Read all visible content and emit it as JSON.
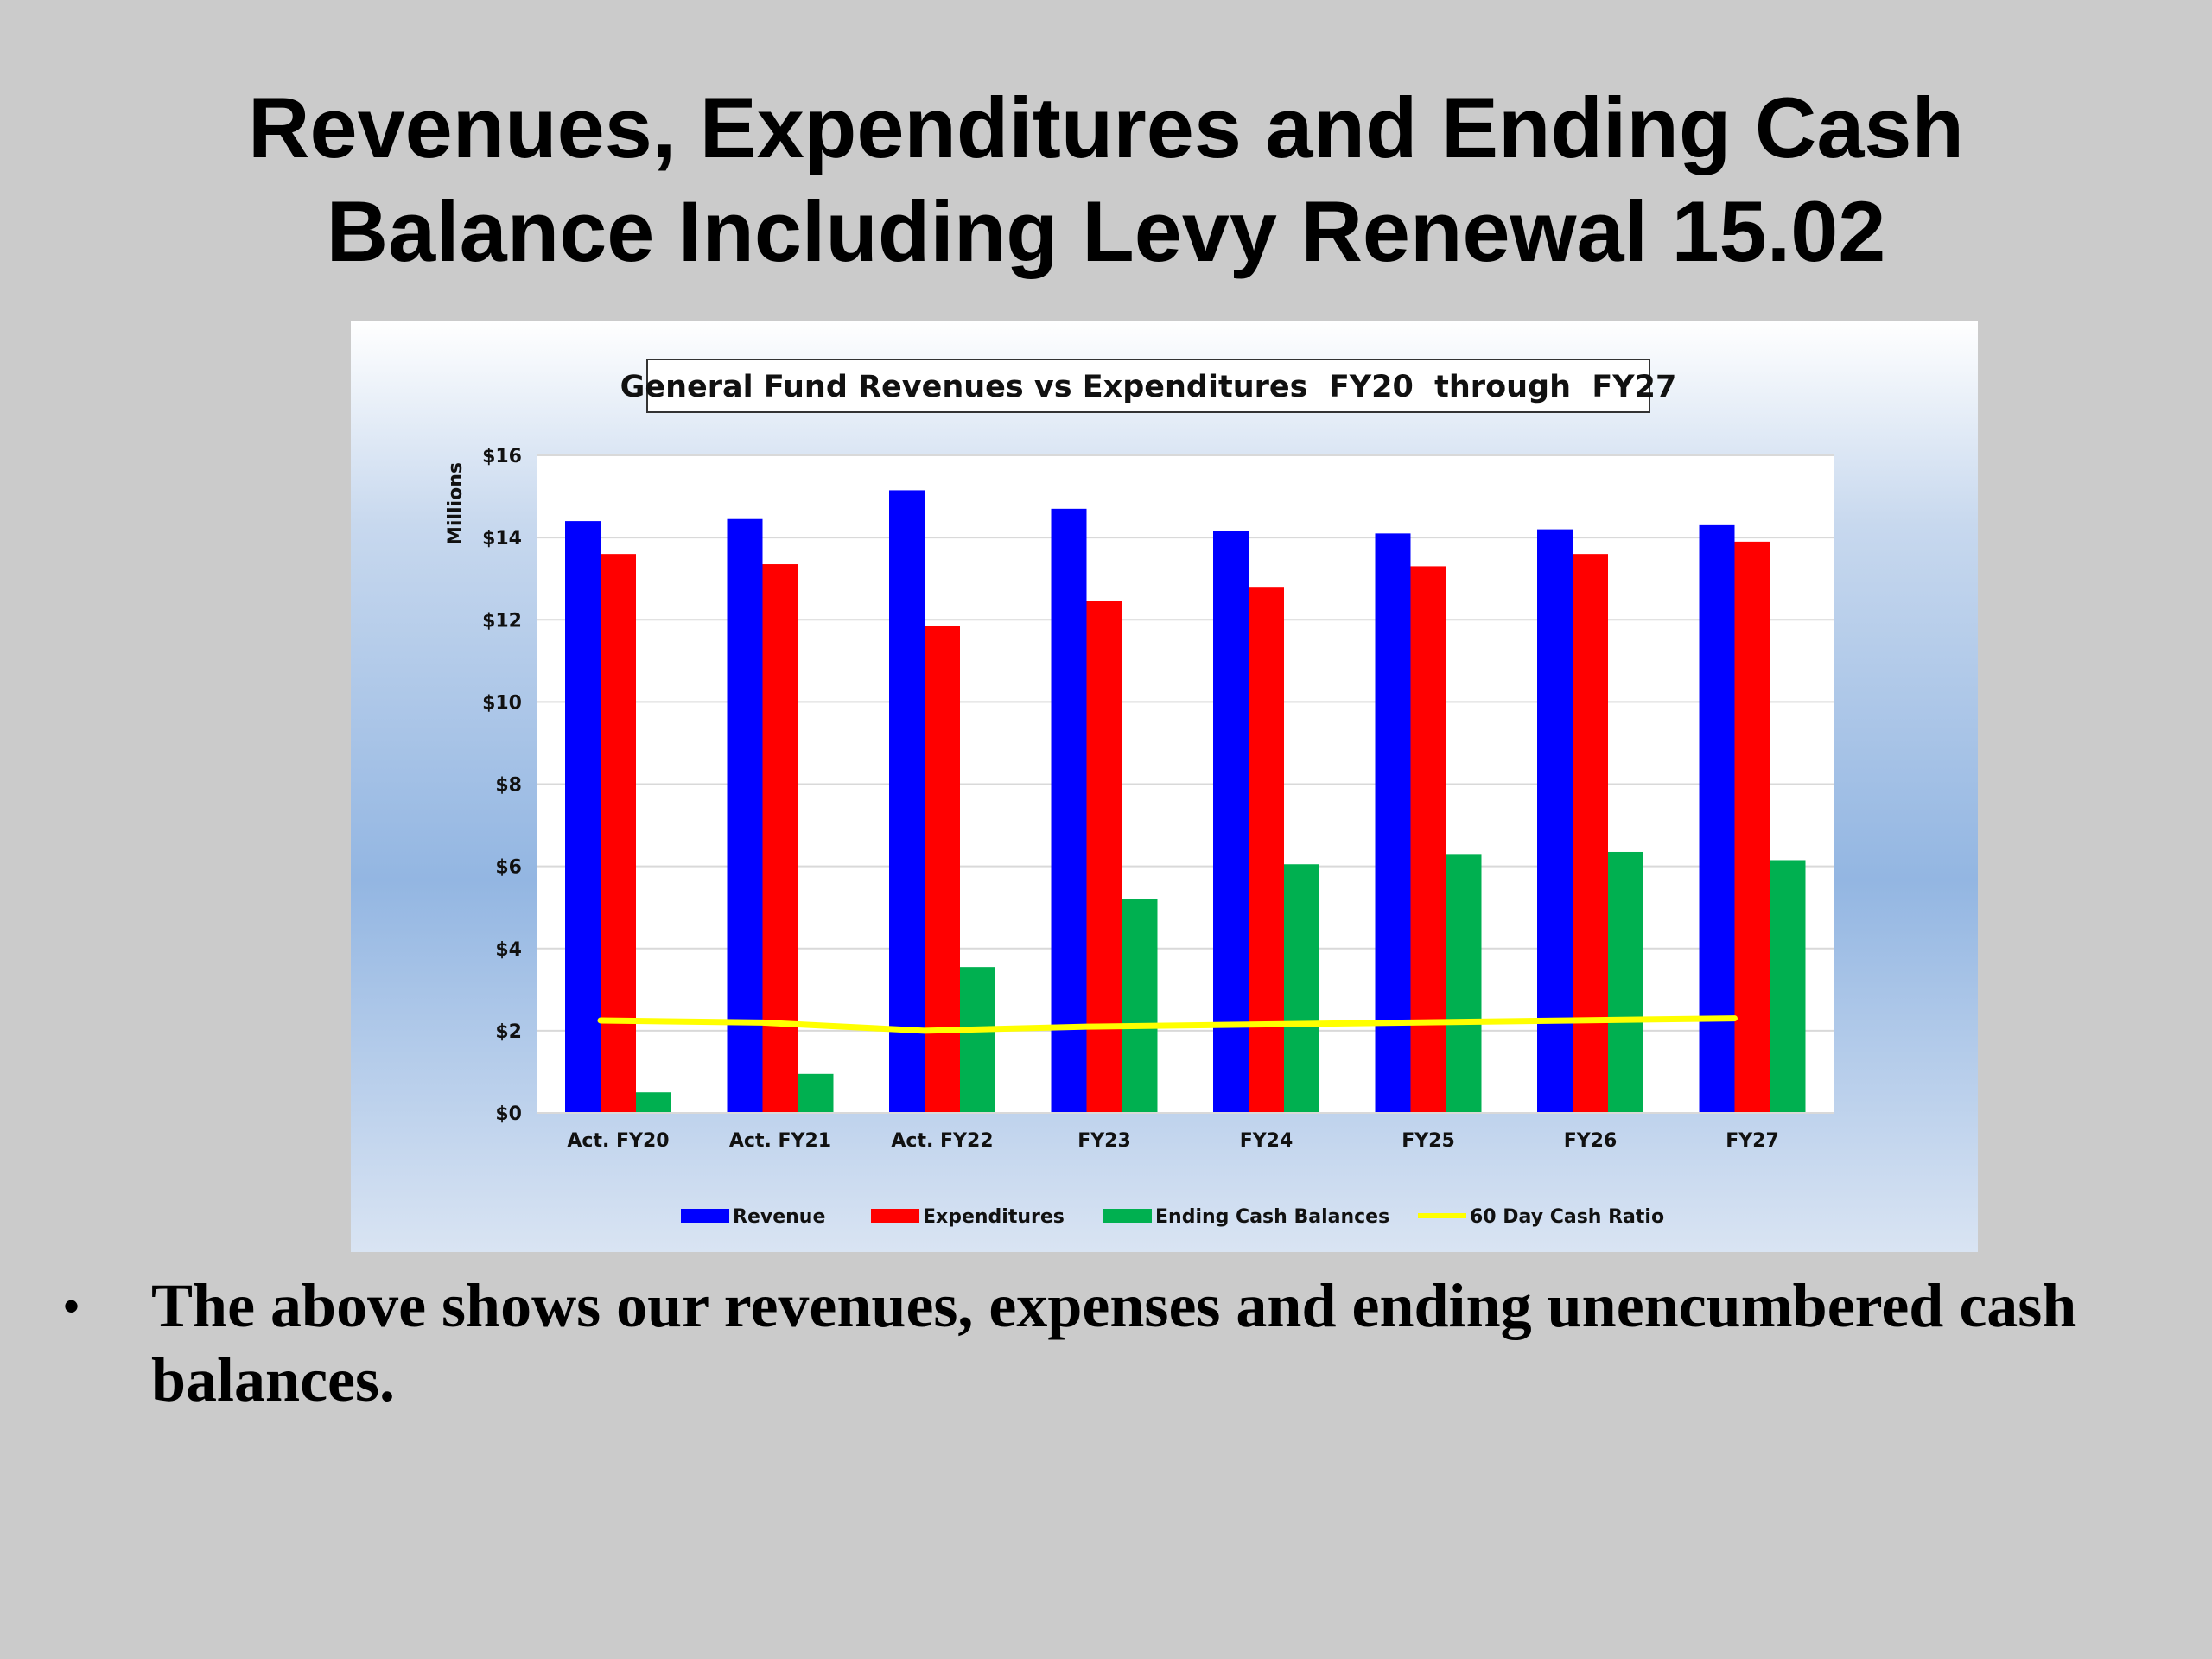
{
  "slide": {
    "title_line1": "Revenues, Expenditures and Ending Cash",
    "title_line2": "Balance Including Levy Renewal 15.02",
    "bullet": "•",
    "caption": "The above shows our revenues, expenses and ending unencumbered cash balances."
  },
  "chart_data": {
    "type": "bar",
    "title": "General Fund Revenues vs Expenditures  FY20  through  FY27",
    "xlabel": "",
    "ylabel": "Millions",
    "ylim": [
      0,
      16
    ],
    "yticks": [
      0,
      2,
      4,
      6,
      8,
      10,
      12,
      14,
      16
    ],
    "ytick_labels": [
      "$0",
      "$2",
      "$4",
      "$6",
      "$8",
      "$10",
      "$12",
      "$14",
      "$16"
    ],
    "grid": true,
    "legend_position": "bottom",
    "categories": [
      "Act. FY20",
      "Act. FY21",
      "Act.  FY22",
      "FY23",
      "FY24",
      "FY25",
      "FY26",
      "FY27"
    ],
    "series": [
      {
        "name": "Revenue",
        "type": "bar",
        "color": "#0000ff",
        "values": [
          14.4,
          14.45,
          15.15,
          14.7,
          14.15,
          14.1,
          14.2,
          14.3
        ]
      },
      {
        "name": "Expenditures",
        "type": "bar",
        "color": "#ff0000",
        "values": [
          13.6,
          13.35,
          11.85,
          12.45,
          12.8,
          13.3,
          13.6,
          13.9
        ]
      },
      {
        "name": "Ending Cash Balances",
        "type": "bar",
        "color": "#00b050",
        "values": [
          0.5,
          0.95,
          3.55,
          5.2,
          6.05,
          6.3,
          6.35,
          6.15
        ]
      },
      {
        "name": "60 Day Cash Ratio",
        "type": "line",
        "color": "#ffff00",
        "values": [
          2.25,
          2.2,
          2.0,
          2.1,
          2.15,
          2.2,
          2.25,
          2.3
        ]
      }
    ]
  }
}
